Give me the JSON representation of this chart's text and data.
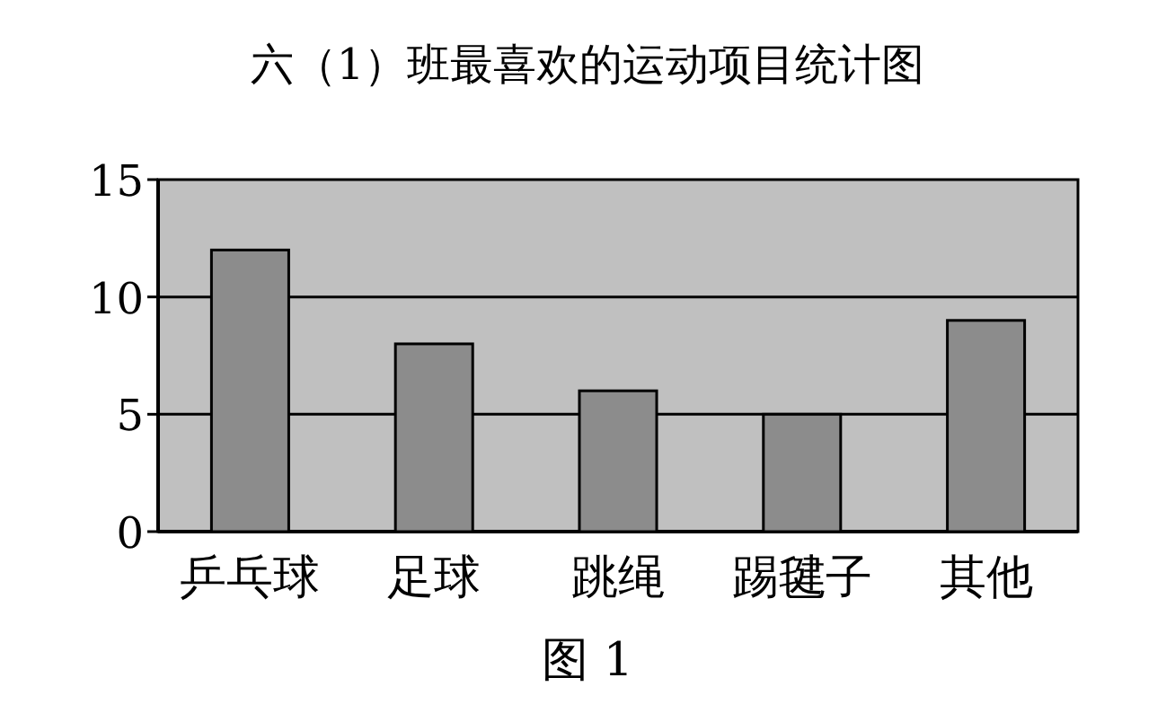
{
  "chart_data": {
    "type": "bar",
    "title": "六（1）班最喜欢的运动项目统计图",
    "categories": [
      "乒乓球",
      "足球",
      "跳绳",
      "踢毽子",
      "其他"
    ],
    "values": [
      12,
      8,
      6,
      5,
      9
    ],
    "color": "#8c8c8c",
    "ylim": [
      0,
      15
    ],
    "yticks": [
      0,
      5,
      10,
      15
    ],
    "grid": "y",
    "annotations": [
      "图 1"
    ]
  }
}
